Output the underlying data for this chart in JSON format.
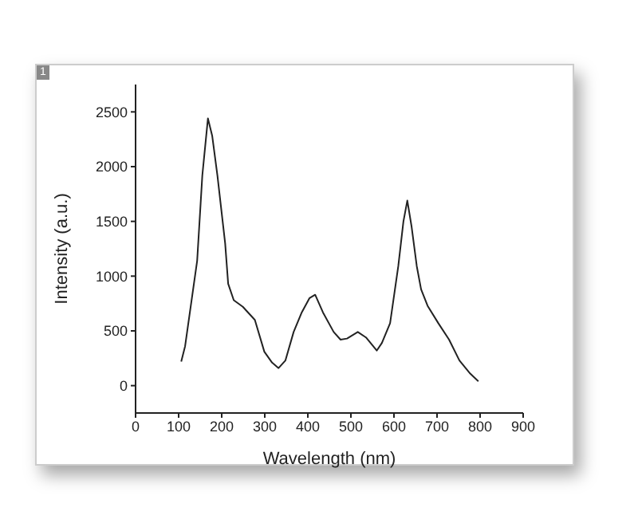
{
  "chart_data": {
    "type": "line",
    "xlabel": "Wavelength (nm)",
    "ylabel": "Intensity (a.u.)",
    "annotations": [
      "1"
    ],
    "x": [
      106,
      115,
      143,
      155,
      168,
      178,
      190,
      208,
      215,
      228,
      249,
      277,
      299,
      317,
      332,
      348,
      367,
      386,
      404,
      417,
      435,
      460,
      476,
      491,
      516,
      535,
      560,
      572,
      591,
      610,
      622,
      631,
      641,
      653,
      663,
      678,
      703,
      728,
      752,
      777,
      796
    ],
    "series": [
      {
        "color": "#222222",
        "values": [
          220,
          360,
          1140,
          1920,
          2440,
          2280,
          1920,
          1300,
          930,
          780,
          720,
          600,
          310,
          210,
          160,
          230,
          490,
          670,
          800,
          830,
          670,
          490,
          420,
          430,
          490,
          440,
          320,
          390,
          570,
          1090,
          1500,
          1690,
          1450,
          1090,
          880,
          730,
          570,
          420,
          230,
          110,
          40
        ]
      }
    ],
    "xlim": [
      0,
      900
    ],
    "xticks": [
      0,
      100,
      200,
      300,
      400,
      500,
      600,
      700,
      800,
      900
    ],
    "ylim": [
      -250,
      2750
    ],
    "yticks": [
      0,
      500,
      1000,
      1500,
      2000,
      2500
    ],
    "grid": false,
    "marker": "none",
    "line_style": "solid"
  }
}
